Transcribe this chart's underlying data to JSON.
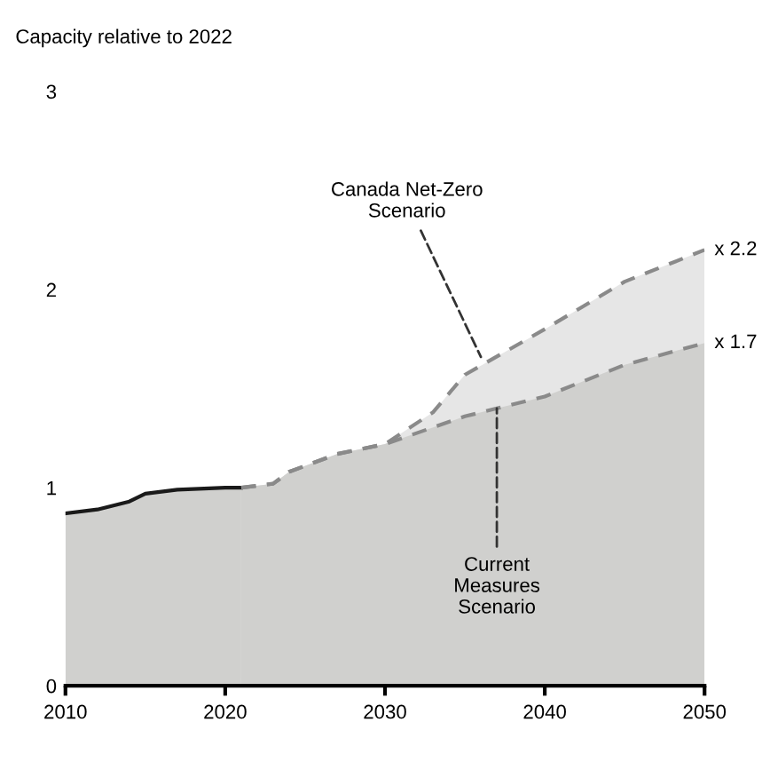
{
  "chart_data": {
    "type": "area",
    "title": "Capacity relative to 2022",
    "xlim": [
      2010,
      2050
    ],
    "xticks": [
      2010,
      2020,
      2030,
      2040,
      2050
    ],
    "ylim": [
      0,
      3
    ],
    "yticks": [
      0,
      1,
      2,
      3
    ],
    "grid": false,
    "series": [
      {
        "x": [
          2021,
          2023,
          2024,
          2027,
          2030,
          2033,
          2035,
          2040,
          2045,
          2050
        ],
        "values": [
          1.0,
          1.02,
          1.08,
          1.17,
          1.22,
          1.38,
          1.57,
          1.8,
          2.04,
          2.2
        ],
        "color": "#e6e6e6",
        "line_style": "dashed"
      },
      {
        "x": [
          2010,
          2012,
          2014,
          2015,
          2017,
          2020,
          2021
        ],
        "values": [
          0.87,
          0.89,
          0.93,
          0.97,
          0.99,
          1.0,
          1.0
        ],
        "color": "#d0d0ce",
        "line_style": "solid"
      },
      {
        "x": [
          2021,
          2023,
          2024,
          2027,
          2030,
          2035,
          2040,
          2045,
          2050
        ],
        "values": [
          1.0,
          1.02,
          1.08,
          1.17,
          1.22,
          1.36,
          1.46,
          1.62,
          1.73
        ],
        "color": "#d0d0ce",
        "line_style": "dashed"
      }
    ],
    "annotations": [
      {
        "text": "Canada Net-Zero\nScenario",
        "x": 2036,
        "y": 1.66
      },
      {
        "text": "Current\nMeasures\nScenario",
        "x": 2037,
        "y": 1.4
      },
      {
        "text": "x 2.2",
        "x": 2050,
        "y": 2.2
      },
      {
        "text": "x 1.7",
        "x": 2050,
        "y": 1.73
      }
    ]
  }
}
